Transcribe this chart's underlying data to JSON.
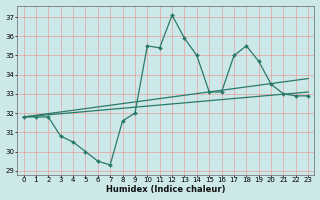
{
  "xlabel": "Humidex (Indice chaleur)",
  "bg_color": "#cce8e8",
  "grid_color": "#e8a0a0",
  "line_color": "#2a7a6a",
  "xlim": [
    -0.5,
    23.5
  ],
  "ylim": [
    28.8,
    37.6
  ],
  "yticks": [
    29,
    30,
    31,
    32,
    33,
    34,
    35,
    36,
    37
  ],
  "xticks": [
    0,
    1,
    2,
    3,
    4,
    5,
    6,
    7,
    8,
    9,
    10,
    11,
    12,
    13,
    14,
    15,
    16,
    17,
    18,
    19,
    20,
    21,
    22,
    23
  ],
  "series": [
    {
      "x": [
        0,
        1,
        2,
        3,
        4,
        5,
        6,
        7,
        8,
        9,
        10,
        11,
        12,
        13,
        14,
        15,
        16,
        17,
        18,
        19,
        20,
        21,
        22,
        23
      ],
      "y": [
        31.8,
        31.8,
        31.8,
        30.8,
        30.5,
        30.0,
        29.5,
        29.3,
        31.6,
        32.0,
        35.5,
        35.4,
        37.1,
        35.9,
        35.0,
        33.1,
        33.1,
        35.0,
        35.5,
        34.7,
        33.5,
        33.0,
        32.9,
        32.9
      ],
      "has_markers": true
    },
    {
      "x": [
        0,
        23
      ],
      "y": [
        31.8,
        33.8
      ],
      "has_markers": false
    },
    {
      "x": [
        0,
        23
      ],
      "y": [
        31.8,
        33.1
      ],
      "has_markers": false
    }
  ]
}
